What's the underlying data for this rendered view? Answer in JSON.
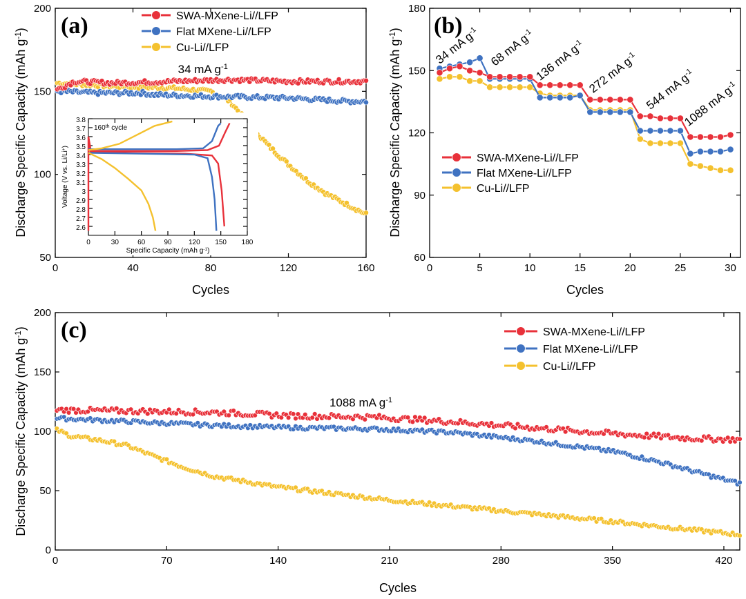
{
  "colors": {
    "red": "#e8313a",
    "blue": "#3f72c1",
    "yellow": "#f4c12e"
  },
  "series_names": [
    "SWA-MXene-Li//LFP",
    "Flat MXene-Li//LFP",
    "Cu-Li//LFP"
  ],
  "chart_data": [
    {
      "id": "a",
      "type": "scatter",
      "panel_label": "(a)",
      "xlabel": "Cycles",
      "ylabel": "Discharge Specific Capacity (mAh g⁻¹)",
      "xlim": [
        0,
        160
      ],
      "ylim": [
        50,
        200
      ],
      "xticks": [
        0,
        40,
        80,
        120,
        160
      ],
      "yticks": [
        50,
        100,
        150,
        200
      ],
      "annotation": {
        "text": "34 mA g⁻¹",
        "x": 76,
        "y": 161
      },
      "series": [
        {
          "name": "SWA-MXene-Li//LFP",
          "color": "red",
          "points": [
            [
              1,
              151
            ],
            [
              10,
              156
            ],
            [
              30,
              155
            ],
            [
              60,
              156
            ],
            [
              90,
              157
            ],
            [
              120,
              156
            ],
            [
              160,
              156
            ]
          ]
        },
        {
          "name": "Flat MXene-Li//LFP",
          "color": "blue",
          "points": [
            [
              1,
              150
            ],
            [
              20,
              149
            ],
            [
              45,
              149
            ],
            [
              50,
              148
            ],
            [
              80,
              147
            ],
            [
              120,
              146
            ],
            [
              150,
              144
            ],
            [
              160,
              144
            ]
          ]
        },
        {
          "name": "Cu-Li//LFP",
          "color": "yellow",
          "points": [
            [
              1,
              155
            ],
            [
              30,
              153
            ],
            [
              60,
              152
            ],
            [
              80,
              150
            ],
            [
              90,
              144
            ],
            [
              100,
              130
            ],
            [
              110,
              117
            ],
            [
              120,
              106
            ],
            [
              130,
              96
            ],
            [
              140,
              88
            ],
            [
              150,
              82
            ],
            [
              160,
              76
            ]
          ]
        }
      ],
      "inset": {
        "title": "160th cycle",
        "xlabel": "Specific Capacity (mAh g⁻¹)",
        "ylabel": "Voltage (V vs. Li/Li⁺)",
        "xlim": [
          0,
          180
        ],
        "ylim": [
          2.5,
          3.8
        ],
        "xticks": [
          0,
          30,
          60,
          90,
          120,
          150,
          180
        ],
        "yticks": [
          2.6,
          2.7,
          2.8,
          2.9,
          3.0,
          3.1,
          3.2,
          3.3,
          3.4,
          3.5,
          3.6,
          3.7,
          3.8
        ],
        "curves": [
          {
            "color": "red",
            "points": [
              [
                0,
                2.55
              ],
              [
                0,
                3.6
              ],
              [
                2,
                3.44
              ],
              [
                40,
                3.44
              ],
              [
                100,
                3.44
              ],
              [
                135,
                3.45
              ],
              [
                148,
                3.5
              ],
              [
                155,
                3.65
              ],
              [
                160,
                3.75
              ]
            ]
          },
          {
            "color": "red",
            "points": [
              [
                0,
                3.6
              ],
              [
                3,
                3.43
              ],
              [
                50,
                3.42
              ],
              [
                110,
                3.41
              ],
              [
                140,
                3.39
              ],
              [
                147,
                3.3
              ],
              [
                151,
                3.0
              ],
              [
                154,
                2.6
              ]
            ]
          },
          {
            "color": "blue",
            "points": [
              [
                0,
                3.46
              ],
              [
                40,
                3.46
              ],
              [
                100,
                3.46
              ],
              [
                130,
                3.47
              ],
              [
                140,
                3.55
              ],
              [
                147,
                3.72
              ],
              [
                150,
                3.75
              ]
            ]
          },
          {
            "color": "blue",
            "points": [
              [
                0,
                3.42
              ],
              [
                60,
                3.41
              ],
              [
                120,
                3.4
              ],
              [
                135,
                3.36
              ],
              [
                140,
                3.15
              ],
              [
                143,
                2.9
              ],
              [
                145,
                2.55
              ]
            ]
          },
          {
            "color": "yellow",
            "points": [
              [
                0,
                3.45
              ],
              [
                15,
                3.47
              ],
              [
                35,
                3.52
              ],
              [
                55,
                3.62
              ],
              [
                75,
                3.72
              ],
              [
                95,
                3.77
              ]
            ]
          },
          {
            "color": "yellow",
            "points": [
              [
                0,
                3.42
              ],
              [
                15,
                3.35
              ],
              [
                30,
                3.25
              ],
              [
                45,
                3.13
              ],
              [
                60,
                3.0
              ],
              [
                68,
                2.85
              ],
              [
                73,
                2.7
              ],
              [
                76,
                2.55
              ]
            ]
          }
        ]
      }
    },
    {
      "id": "b",
      "type": "scatter",
      "panel_label": "(b)",
      "xlabel": "Cycles",
      "ylabel": "Discharge Specific Capacity (mAh g⁻¹)",
      "xlim": [
        0,
        31
      ],
      "ylim": [
        60,
        180
      ],
      "xticks": [
        0,
        5,
        10,
        15,
        20,
        25,
        30
      ],
      "yticks": [
        60,
        90,
        120,
        150,
        180
      ],
      "annotations": [
        {
          "text": "34 mA g⁻¹",
          "x": 1.0,
          "y": 153
        },
        {
          "text": "68 mA g⁻¹",
          "x": 6.5,
          "y": 152
        },
        {
          "text": "136 mA g⁻¹",
          "x": 11.0,
          "y": 145
        },
        {
          "text": "272 mA g⁻¹",
          "x": 16.3,
          "y": 139
        },
        {
          "text": "544 mA g⁻¹",
          "x": 22.0,
          "y": 131
        },
        {
          "text": "1088 mA g⁻¹",
          "x": 25.8,
          "y": 123
        }
      ],
      "series": [
        {
          "name": "SWA-MXene-Li//LFP",
          "color": "red",
          "values": [
            149,
            151,
            152,
            150,
            149,
            147,
            147,
            147,
            147,
            147,
            143,
            143,
            143,
            143,
            143,
            136,
            136,
            136,
            136,
            136,
            128,
            128,
            127,
            127,
            127,
            118,
            118,
            118,
            118,
            119
          ]
        },
        {
          "name": "Flat MXene-Li//LFP",
          "color": "blue",
          "values": [
            151,
            152,
            153,
            154,
            156,
            146,
            146,
            146,
            146,
            146,
            137,
            137,
            137,
            137,
            138,
            130,
            130,
            130,
            130,
            130,
            121,
            121,
            121,
            121,
            121,
            110,
            111,
            111,
            111,
            112
          ]
        },
        {
          "name": "Cu-Li//LFP",
          "color": "yellow",
          "values": [
            146,
            147,
            147,
            145,
            145,
            142,
            142,
            142,
            142,
            142,
            139,
            138,
            138,
            138,
            138,
            131,
            131,
            131,
            131,
            131,
            117,
            115,
            115,
            115,
            115,
            105,
            104,
            103,
            102,
            102
          ]
        }
      ]
    },
    {
      "id": "c",
      "type": "scatter",
      "panel_label": "(c)",
      "xlabel": "Cycles",
      "ylabel": "Discharge Specific Capacity (mAh g⁻¹)",
      "xlim": [
        0,
        430
      ],
      "ylim": [
        0,
        200
      ],
      "xticks": [
        0,
        70,
        140,
        210,
        280,
        350,
        420
      ],
      "yticks": [
        0,
        50,
        100,
        150,
        200
      ],
      "annotation": {
        "text": "1088 mA g⁻¹",
        "x": 192,
        "y": 121
      },
      "series": [
        {
          "name": "SWA-MXene-Li//LFP",
          "color": "red",
          "points": [
            [
              1,
              118
            ],
            [
              50,
              117
            ],
            [
              100,
              116
            ],
            [
              150,
              113
            ],
            [
              200,
              112
            ],
            [
              250,
              108
            ],
            [
              300,
              103
            ],
            [
              350,
              98
            ],
            [
              400,
              94
            ],
            [
              430,
              93
            ]
          ]
        },
        {
          "name": "Flat MXene-Li//LFP",
          "color": "blue",
          "points": [
            [
              1,
              111
            ],
            [
              50,
              108
            ],
            [
              100,
              105
            ],
            [
              150,
              103
            ],
            [
              200,
              102
            ],
            [
              250,
              99
            ],
            [
              300,
              92
            ],
            [
              340,
              85
            ],
            [
              355,
              82
            ],
            [
              380,
              74
            ],
            [
              410,
              63
            ],
            [
              430,
              56
            ]
          ]
        },
        {
          "name": "Cu-Li//LFP",
          "color": "yellow",
          "points": [
            [
              1,
              101
            ],
            [
              10,
              96
            ],
            [
              30,
              92
            ],
            [
              45,
              88
            ],
            [
              60,
              80
            ],
            [
              80,
              70
            ],
            [
              100,
              62
            ],
            [
              140,
              53
            ],
            [
              210,
              42
            ],
            [
              280,
              33
            ],
            [
              350,
              24
            ],
            [
              400,
              17
            ],
            [
              430,
              13
            ]
          ]
        }
      ]
    }
  ]
}
